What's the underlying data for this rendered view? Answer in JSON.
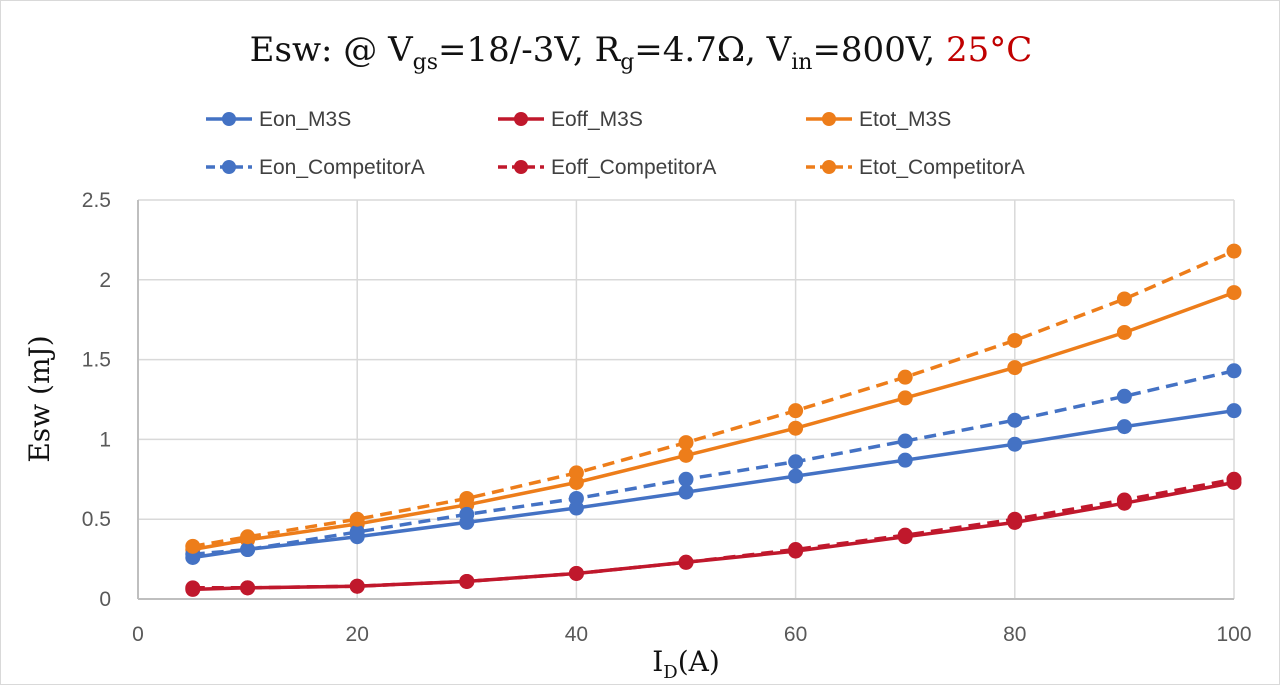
{
  "chart_data": {
    "type": "line",
    "title": {
      "prefix": "Esw: @ V",
      "vgs_sub": "gs",
      "vgs_value": "=18/-3V, R",
      "rg_sub": "g",
      "rg_value": "=4.7Ω, V",
      "vin_sub": "in",
      "vin_value": "=800V, ",
      "temperature": "25°C",
      "temperature_color": "#c00000"
    },
    "xlabel": {
      "main": "I",
      "sub": "D",
      "unit": "(A)"
    },
    "ylabel": "Esw (mJ)",
    "xlim": [
      0,
      100
    ],
    "ylim": [
      0,
      2.5
    ],
    "xticks": [
      0,
      20,
      40,
      60,
      80,
      100
    ],
    "xtick_labels": [
      "0",
      "20",
      "40",
      "60",
      "80",
      "100"
    ],
    "yticks": [
      0,
      0.5,
      1,
      1.5,
      2,
      2.5
    ],
    "ytick_labels": [
      "0",
      "0.5",
      "1",
      "1.5",
      "2",
      "2.5"
    ],
    "grid": true,
    "legend_position": "top",
    "x": [
      5,
      10,
      20,
      30,
      40,
      50,
      60,
      70,
      80,
      90,
      100
    ],
    "series": [
      {
        "name": "Eon_M3S",
        "color": "#4472c4",
        "dashed": false,
        "values": [
          0.26,
          0.31,
          0.39,
          0.48,
          0.57,
          0.67,
          0.77,
          0.87,
          0.97,
          1.08,
          1.18
        ]
      },
      {
        "name": "Eoff_M3S",
        "color": "#c0182c",
        "dashed": false,
        "values": [
          0.06,
          0.07,
          0.08,
          0.11,
          0.16,
          0.23,
          0.3,
          0.39,
          0.48,
          0.6,
          0.73
        ]
      },
      {
        "name": "Etot_M3S",
        "color": "#ed7d1a",
        "dashed": false,
        "values": [
          0.31,
          0.37,
          0.47,
          0.59,
          0.73,
          0.9,
          1.07,
          1.26,
          1.45,
          1.67,
          1.92
        ]
      },
      {
        "name": "Eon_CompetitorA",
        "color": "#4472c4",
        "dashed": true,
        "values": [
          0.28,
          0.31,
          0.42,
          0.53,
          0.63,
          0.75,
          0.86,
          0.99,
          1.12,
          1.27,
          1.43
        ]
      },
      {
        "name": "Eoff_CompetitorA",
        "color": "#c0182c",
        "dashed": true,
        "values": [
          0.07,
          0.07,
          0.08,
          0.11,
          0.16,
          0.23,
          0.31,
          0.4,
          0.5,
          0.62,
          0.75
        ]
      },
      {
        "name": "Etot_CompetitorA",
        "color": "#ed7d1a",
        "dashed": true,
        "values": [
          0.33,
          0.39,
          0.5,
          0.63,
          0.79,
          0.98,
          1.18,
          1.39,
          1.62,
          1.88,
          2.18
        ]
      }
    ]
  }
}
